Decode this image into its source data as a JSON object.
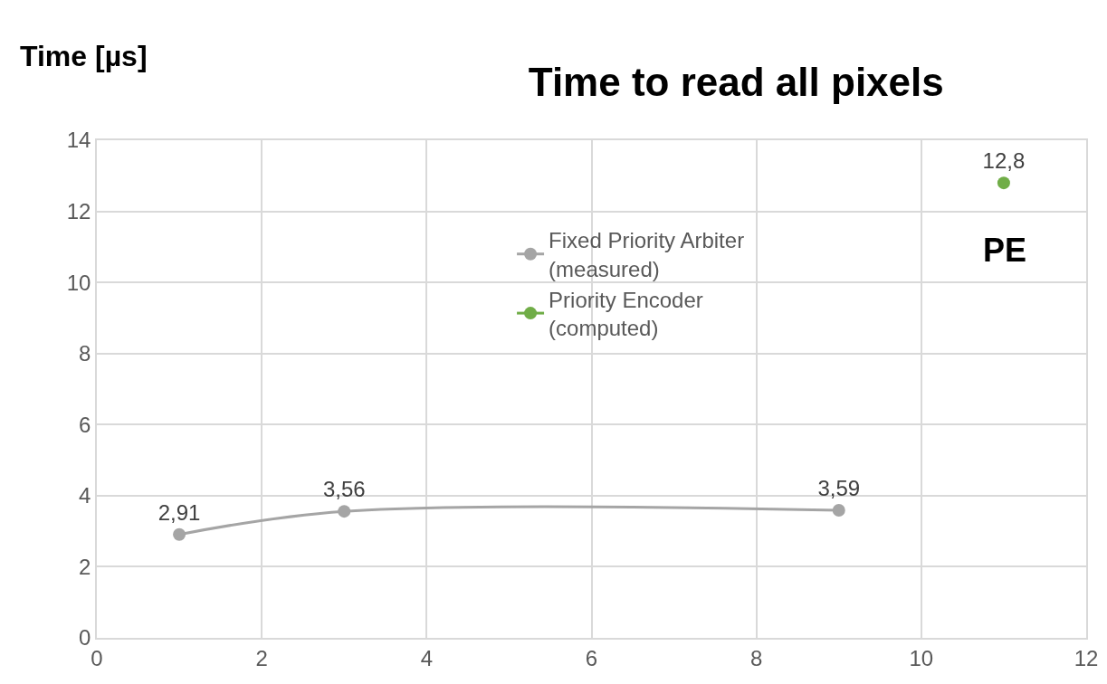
{
  "chart_data": {
    "type": "line",
    "title": "Time to read all pixels",
    "ylabel": "Time [µs]",
    "xlim": [
      0,
      12
    ],
    "xticks": [
      0,
      2,
      4,
      6,
      8,
      10,
      12
    ],
    "ylim": [
      0,
      14
    ],
    "yticks": [
      0,
      2,
      4,
      6,
      8,
      10,
      12,
      14
    ],
    "grid": true,
    "legend": "top",
    "marker": "circle",
    "line_style": "solid",
    "series": [
      {
        "name": "Fixed Priority Arbiter (measured)",
        "color": "#a5a5a5",
        "x": [
          1,
          3,
          9
        ],
        "values": [
          2.91,
          3.56,
          3.59
        ],
        "value_labels": [
          "2,91",
          "3,56",
          "3,59"
        ]
      },
      {
        "name": "Priority Encoder (computed)",
        "color": "#70ad47",
        "x": [
          11
        ],
        "values": [
          12.8
        ],
        "value_labels": [
          "12,8"
        ]
      }
    ],
    "annotations": [
      "PE"
    ]
  }
}
